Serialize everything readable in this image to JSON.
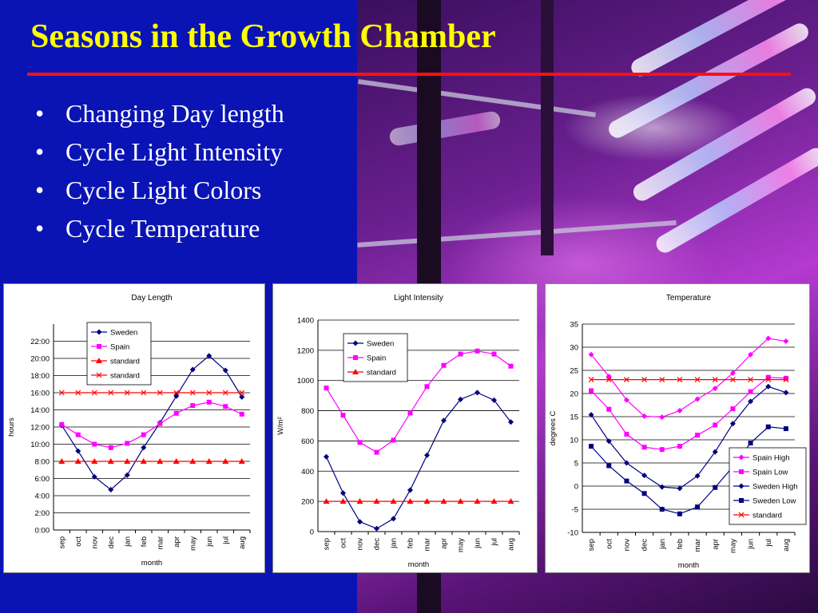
{
  "slide": {
    "title": "Seasons in the Growth Chamber",
    "bullet_glyph": "•",
    "bullets": [
      "Changing Day length",
      "Cycle Light Intensity",
      "Cycle Light Colors",
      "Cycle Temperature"
    ],
    "colors": {
      "background": "#0a14b4",
      "title": "#ffff00",
      "rule": "#ff1010",
      "text": "#ffffff"
    }
  },
  "chart_data": [
    {
      "id": "daylength",
      "type": "line",
      "title": "Day Length",
      "xlabel": "month",
      "ylabel": "hours",
      "categories": [
        "sep",
        "oct",
        "nov",
        "dec",
        "jan",
        "feb",
        "mar",
        "apr",
        "may",
        "jun",
        "jul",
        "aug"
      ],
      "ylim": [
        0,
        24
      ],
      "yticks": [
        0,
        2,
        4,
        6,
        8,
        10,
        12,
        14,
        16,
        18,
        20,
        22
      ],
      "ytick_labels": [
        "0:00",
        "2:00",
        "4:00",
        "6:00",
        "8:00",
        "10:00",
        "12:00",
        "14:00",
        "16:00",
        "18:00",
        "20:00",
        "22:00"
      ],
      "grid": true,
      "legend_position": "top-center",
      "series": [
        {
          "name": "Sweden",
          "color": "#000080",
          "marker": "diamond",
          "values": [
            12.2,
            9.2,
            6.2,
            4.7,
            6.4,
            9.6,
            12.5,
            15.6,
            18.7,
            20.3,
            18.6,
            15.5
          ]
        },
        {
          "name": "Spain",
          "color": "#ff00ff",
          "marker": "square",
          "values": [
            12.3,
            11.1,
            10.0,
            9.6,
            10.1,
            11.1,
            12.4,
            13.6,
            14.5,
            14.9,
            14.4,
            13.5
          ]
        },
        {
          "name": "standard",
          "color": "#ff0000",
          "marker": "triangle",
          "values": [
            8,
            8,
            8,
            8,
            8,
            8,
            8,
            8,
            8,
            8,
            8,
            8
          ]
        },
        {
          "name": "standard",
          "color": "#ff0000",
          "marker": "x",
          "values": [
            16,
            16,
            16,
            16,
            16,
            16,
            16,
            16,
            16,
            16,
            16,
            16
          ]
        }
      ]
    },
    {
      "id": "light",
      "type": "line",
      "title": "Light Intensity",
      "xlabel": "month",
      "ylabel": "W/m²",
      "categories": [
        "sep",
        "oct",
        "nov",
        "dec",
        "jan",
        "feb",
        "mar",
        "apr",
        "may",
        "jun",
        "jul",
        "aug"
      ],
      "ylim": [
        0,
        1400
      ],
      "yticks": [
        0,
        200,
        400,
        600,
        800,
        1000,
        1200,
        1400
      ],
      "ytick_labels": [
        "0",
        "200",
        "400",
        "600",
        "800",
        "1000",
        "1200",
        "1400"
      ],
      "grid": true,
      "legend_position": "top-left",
      "series": [
        {
          "name": "Sweden",
          "color": "#000080",
          "marker": "diamond",
          "values": [
            495,
            255,
            65,
            20,
            85,
            275,
            505,
            735,
            875,
            920,
            870,
            725
          ]
        },
        {
          "name": "Spain",
          "color": "#ff00ff",
          "marker": "square",
          "values": [
            950,
            770,
            590,
            525,
            605,
            785,
            960,
            1100,
            1175,
            1195,
            1175,
            1095
          ]
        },
        {
          "name": "standard",
          "color": "#ff0000",
          "marker": "triangle",
          "values": [
            200,
            200,
            200,
            200,
            200,
            200,
            200,
            200,
            200,
            200,
            200,
            200
          ]
        }
      ]
    },
    {
      "id": "temperature",
      "type": "line",
      "title": "Temperature",
      "xlabel": "month",
      "ylabel": "degrees C",
      "categories": [
        "sep",
        "oct",
        "nov",
        "dec",
        "jan",
        "feb",
        "mar",
        "apr",
        "may",
        "jun",
        "jul",
        "aug"
      ],
      "ylim": [
        -10,
        35
      ],
      "yticks": [
        -10,
        -5,
        0,
        5,
        10,
        15,
        20,
        25,
        30,
        35
      ],
      "ytick_labels": [
        "-10",
        "-5",
        "0",
        "5",
        "10",
        "15",
        "20",
        "25",
        "30",
        "35"
      ],
      "grid": true,
      "legend_position": "bottom-right",
      "series": [
        {
          "name": "Spain High",
          "color": "#ff00ff",
          "marker": "diamond",
          "values": [
            28.4,
            23.7,
            18.6,
            15.1,
            14.9,
            16.3,
            18.8,
            21.1,
            24.4,
            28.4,
            31.9,
            31.3
          ]
        },
        {
          "name": "Spain Low",
          "color": "#ff00ff",
          "marker": "square",
          "values": [
            20.6,
            16.6,
            11.2,
            8.4,
            7.9,
            8.6,
            11.0,
            13.2,
            16.7,
            20.4,
            23.5,
            23.3
          ]
        },
        {
          "name": "Sweden High",
          "color": "#000080",
          "marker": "diamond",
          "values": [
            15.4,
            9.7,
            5.0,
            2.3,
            -0.2,
            -0.5,
            2.2,
            7.4,
            13.5,
            18.3,
            21.5,
            20.2
          ]
        },
        {
          "name": "Sweden Low",
          "color": "#000080",
          "marker": "square",
          "values": [
            8.6,
            4.4,
            1.1,
            -1.6,
            -5.0,
            -6.0,
            -4.5,
            -0.3,
            4.2,
            9.3,
            12.8,
            12.4
          ]
        },
        {
          "name": "standard",
          "color": "#ff0000",
          "marker": "x",
          "values": [
            23,
            23,
            23,
            23,
            23,
            23,
            23,
            23,
            23,
            23,
            23,
            23
          ]
        }
      ]
    }
  ]
}
